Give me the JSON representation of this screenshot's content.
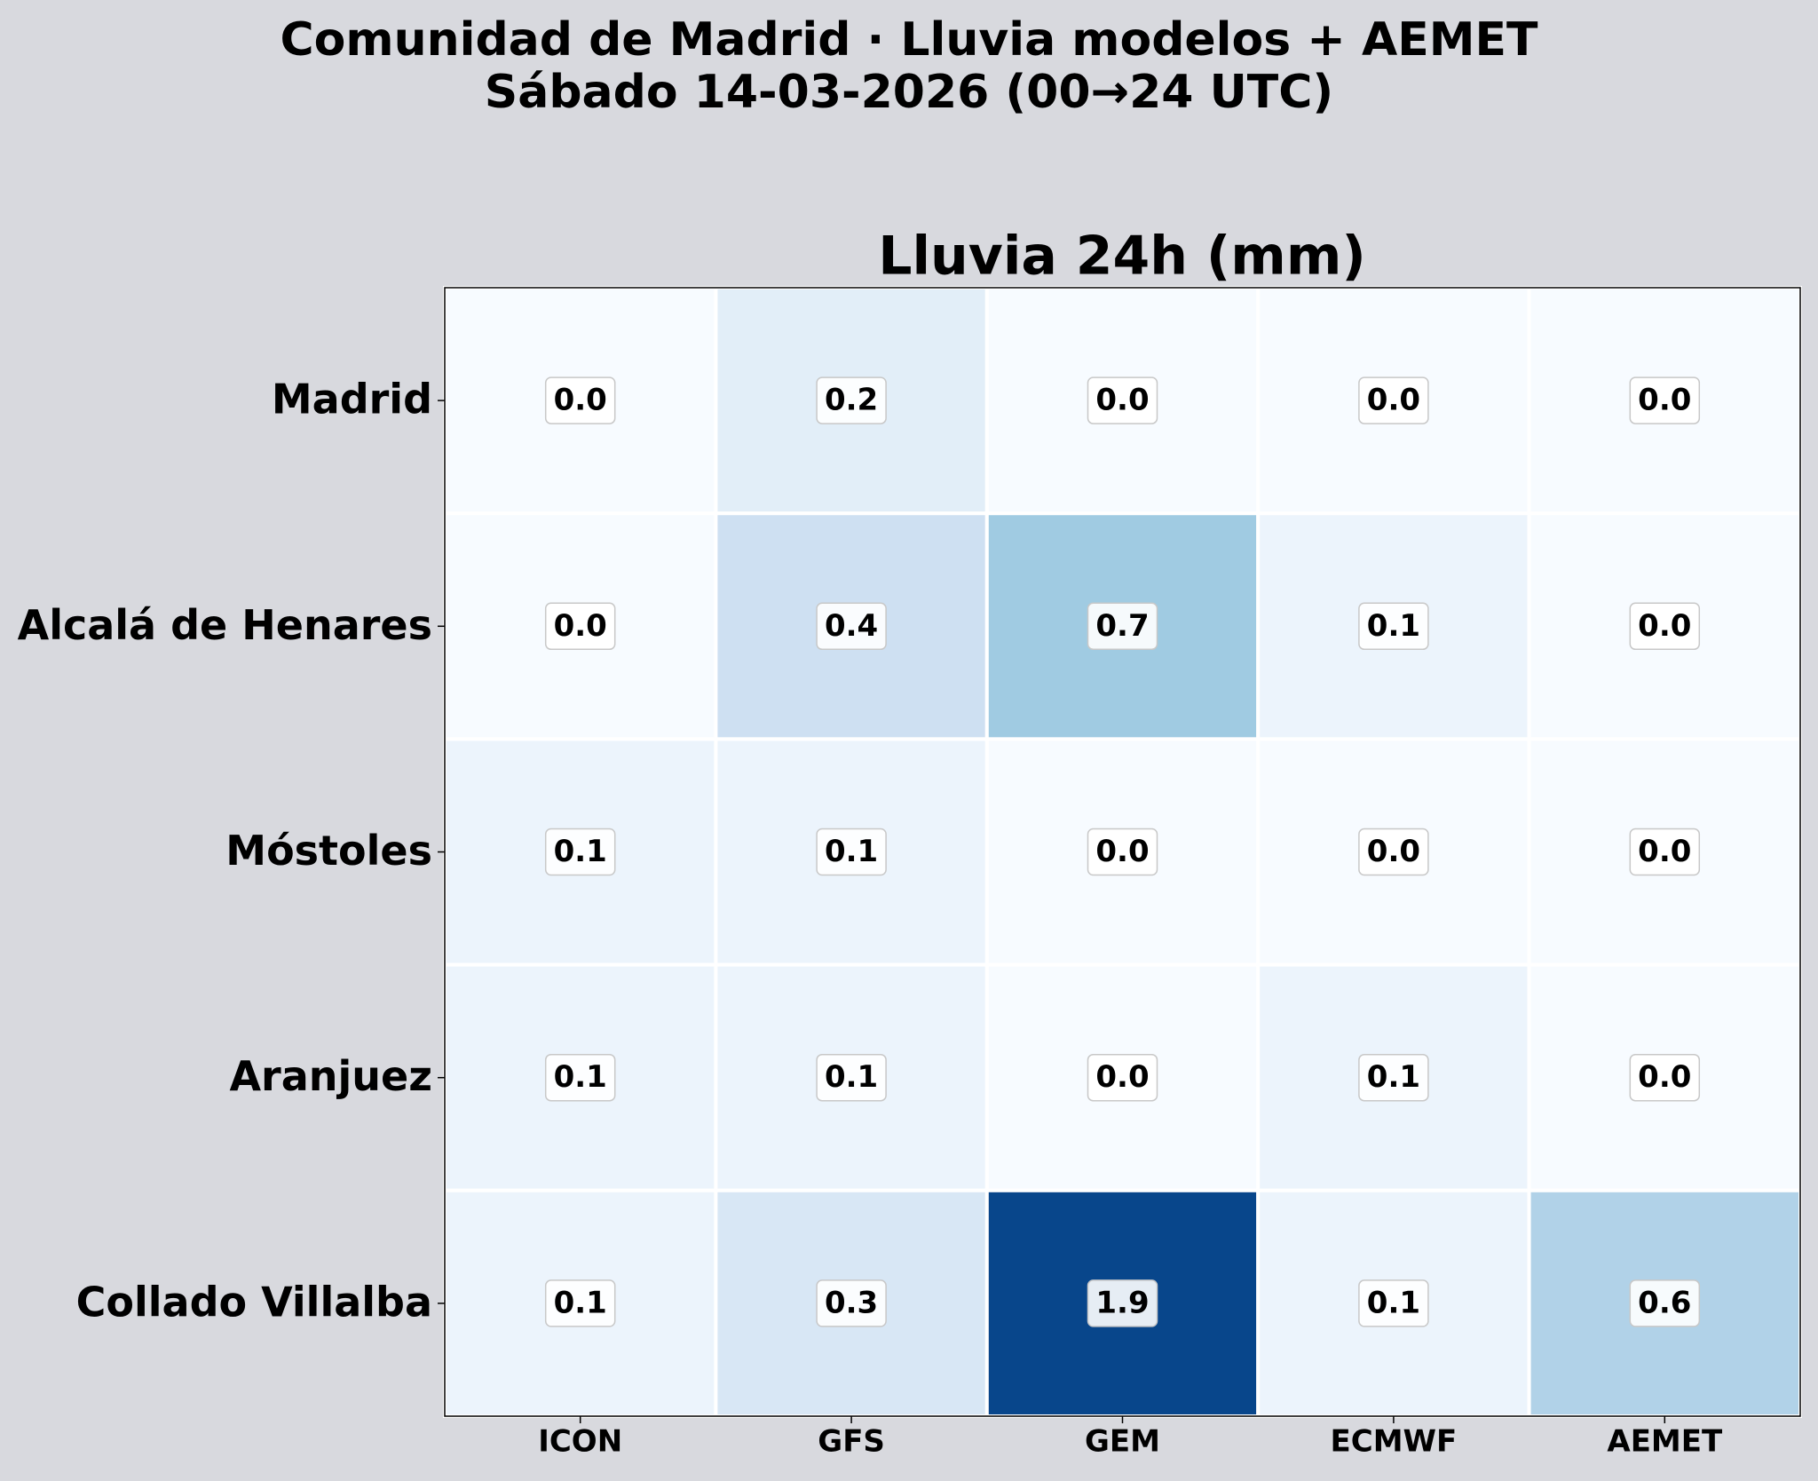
{
  "chart_data": {
    "type": "heatmap",
    "suptitle": [
      "Comunidad de Madrid · Lluvia modelos + AEMET",
      "Sábado 14-03-2026 (00→24 UTC)"
    ],
    "title": "Lluvia 24h (mm)",
    "x": [
      "ICON",
      "GFS",
      "GEM",
      "ECMWF",
      "AEMET"
    ],
    "y": [
      "Madrid",
      "Alcalá de Henares",
      "Móstoles",
      "Aranjuez",
      "Collado Villalba"
    ],
    "values": [
      [
        0.0,
        0.2,
        0.0,
        0.0,
        0.0
      ],
      [
        0.0,
        0.4,
        0.7,
        0.1,
        0.0
      ],
      [
        0.1,
        0.1,
        0.0,
        0.0,
        0.0
      ],
      [
        0.1,
        0.1,
        0.0,
        0.1,
        0.0
      ],
      [
        0.1,
        0.3,
        1.9,
        0.1,
        0.6
      ]
    ],
    "value_labels": [
      [
        "0.0",
        "0.2",
        "0.0",
        "0.0",
        "0.0"
      ],
      [
        "0.0",
        "0.4",
        "0.7",
        "0.1",
        "0.0"
      ],
      [
        "0.1",
        "0.1",
        "0.0",
        "0.0",
        "0.0"
      ],
      [
        "0.1",
        "0.1",
        "0.0",
        "0.1",
        "0.0"
      ],
      [
        "0.1",
        "0.3",
        "1.9",
        "0.1",
        "0.6"
      ]
    ],
    "colorscale": [
      "#f7fbff",
      "#deebf7",
      "#c6dbef",
      "#9ecae1",
      "#6baed6",
      "#4292c6",
      "#2171b5",
      "#08519c",
      "#08468b"
    ]
  }
}
